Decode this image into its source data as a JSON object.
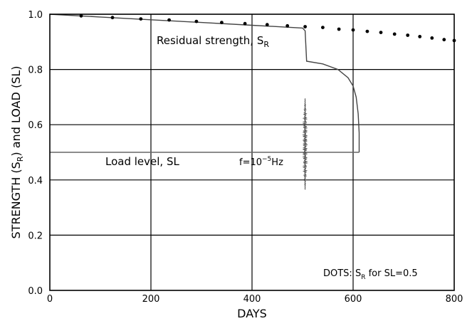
{
  "chart_data": {
    "type": "line",
    "xlabel": "DAYS",
    "ylabel_parts": {
      "a": "STRENGTH (S",
      "a_sub": "R",
      "b": ") and LOAD (SL)"
    },
    "xlim": [
      0,
      800
    ],
    "ylim": [
      0.0,
      1.0
    ],
    "x_ticks": [
      "0",
      "200",
      "400",
      "600",
      "800"
    ],
    "y_ticks": [
      "0.0",
      "0.2",
      "0.4",
      "0.6",
      "0.8",
      "1.0"
    ],
    "grid": true,
    "annotations": {
      "residual": {
        "text": "Residual strength, S",
        "sub": "R"
      },
      "load": {
        "text": "Load level, SL"
      },
      "freq": {
        "pre": "f=10",
        "sup": "−5",
        "post": "Hz"
      },
      "dots": {
        "pre": "DOTS: S",
        "sub": "R",
        "post": " for SL=0.5"
      }
    },
    "series": [
      {
        "style": "line",
        "color": "#444444",
        "points": [
          [
            0,
            1.0
          ],
          [
            100,
            0.99
          ],
          [
            200,
            0.98
          ],
          [
            300,
            0.97
          ],
          [
            400,
            0.96
          ],
          [
            500,
            0.95
          ],
          [
            505,
            0.94
          ],
          [
            508,
            0.83
          ],
          [
            540,
            0.82
          ],
          [
            570,
            0.8
          ],
          [
            590,
            0.77
          ],
          [
            600,
            0.74
          ],
          [
            606,
            0.7
          ],
          [
            610,
            0.64
          ],
          [
            612,
            0.57
          ],
          [
            612,
            0.5
          ]
        ]
      },
      {
        "style": "line",
        "color": "#666666",
        "points": [
          [
            0,
            0.5
          ],
          [
            612,
            0.5
          ]
        ]
      },
      {
        "style": "dots",
        "color": "#000000",
        "points": [
          [
            62,
            0.994
          ],
          [
            124,
            0.988
          ],
          [
            180,
            0.983
          ],
          [
            236,
            0.979
          ],
          [
            290,
            0.974
          ],
          [
            340,
            0.97
          ],
          [
            386,
            0.966
          ],
          [
            430,
            0.962
          ],
          [
            470,
            0.958
          ],
          [
            505,
            0.955
          ],
          [
            540,
            0.952
          ],
          [
            572,
            0.946
          ],
          [
            600,
            0.943
          ],
          [
            628,
            0.938
          ],
          [
            655,
            0.934
          ],
          [
            682,
            0.928
          ],
          [
            708,
            0.924
          ],
          [
            732,
            0.919
          ],
          [
            756,
            0.914
          ],
          [
            780,
            0.908
          ],
          [
            800,
            0.905
          ]
        ]
      },
      {
        "style": "oscillation",
        "color": "#555555",
        "x_center": 505,
        "center": 0.53,
        "amplitude": 0.165
      }
    ]
  }
}
